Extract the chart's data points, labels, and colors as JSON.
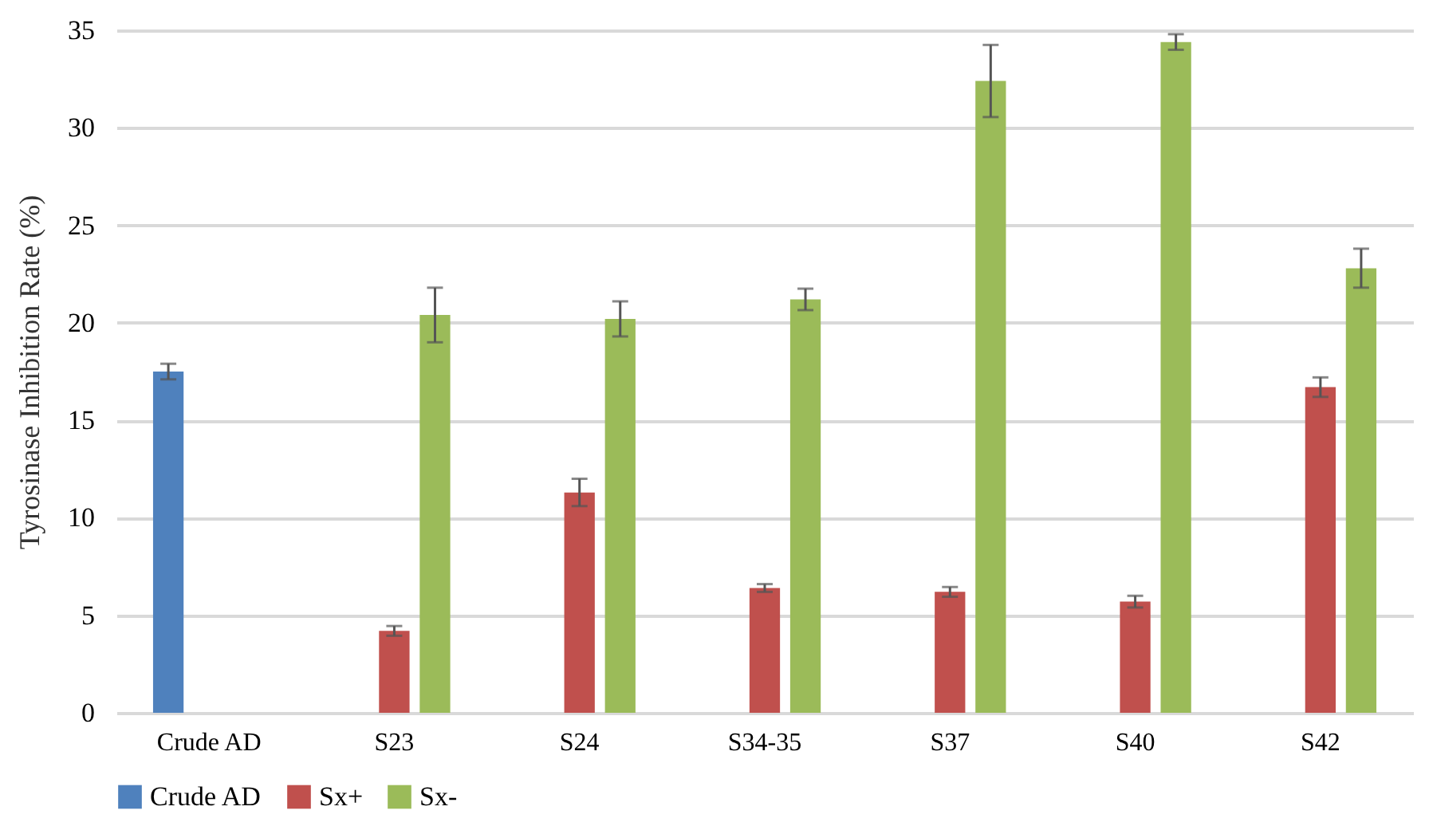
{
  "chart_data": {
    "type": "bar",
    "ylabel": "Tyrosinase Inhibition Rate (%)",
    "categories": [
      "Crude AD",
      "S23",
      "S24",
      "S34-35",
      "S37",
      "S40",
      "S42"
    ],
    "series": [
      {
        "name": "Crude AD",
        "color": "#4f81bd",
        "values": [
          17.5,
          null,
          null,
          null,
          null,
          null,
          null
        ],
        "errors": [
          0.4,
          null,
          null,
          null,
          null,
          null,
          null
        ]
      },
      {
        "name": "Sx+",
        "color": "#c0504d",
        "values": [
          null,
          4.2,
          11.3,
          6.4,
          6.2,
          5.7,
          16.7
        ],
        "errors": [
          null,
          0.25,
          0.7,
          0.2,
          0.25,
          0.3,
          0.5
        ]
      },
      {
        "name": "Sx-",
        "color": "#9bbb59",
        "values": [
          null,
          20.4,
          20.2,
          21.2,
          32.4,
          34.4,
          22.8
        ],
        "errors": [
          null,
          1.4,
          0.9,
          0.55,
          1.85,
          0.4,
          1.0
        ]
      }
    ],
    "ylim": [
      0,
      35
    ],
    "yticks": [
      0,
      5,
      10,
      15,
      20,
      25,
      30,
      35
    ],
    "grid": "y",
    "legend": "bottom"
  }
}
